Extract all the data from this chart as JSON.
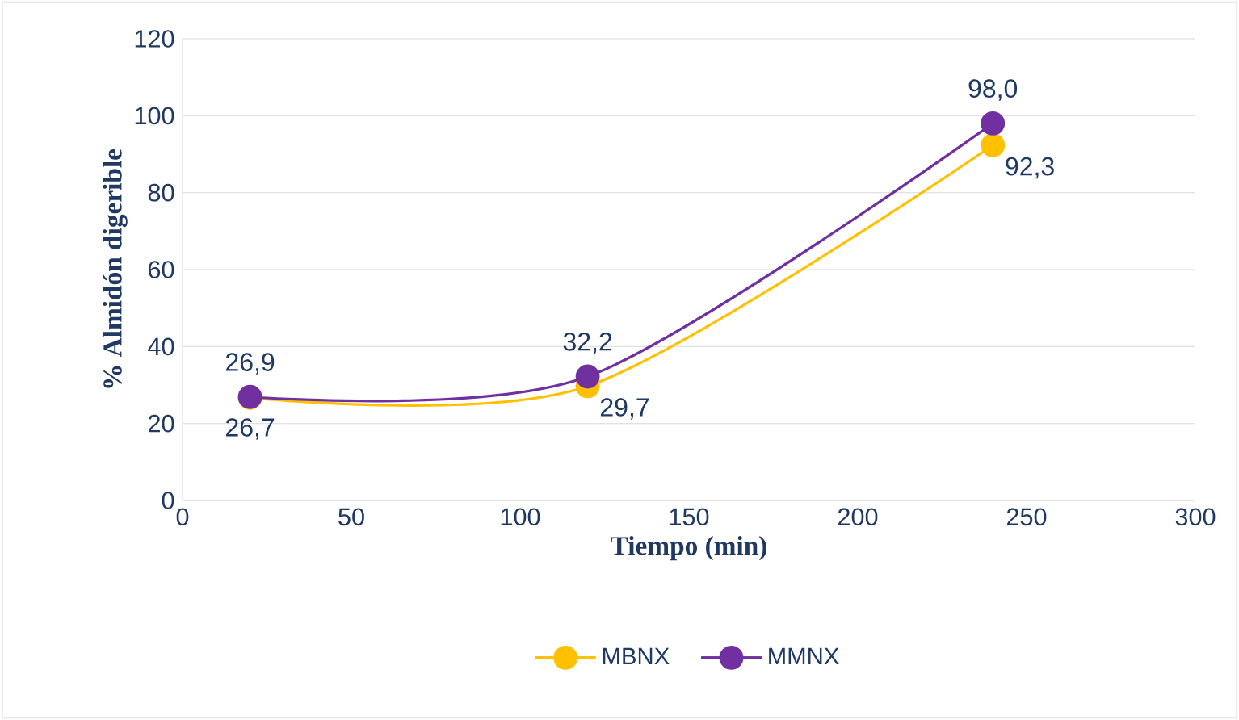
{
  "chart_data": {
    "type": "line",
    "xlabel": "Tiempo (min)",
    "ylabel": "% Almidón digerible",
    "xlim": [
      0,
      300
    ],
    "xticks": [
      0,
      50,
      100,
      150,
      200,
      250,
      300
    ],
    "ylim": [
      0,
      120
    ],
    "yticks": [
      0,
      20,
      40,
      60,
      80,
      100,
      120
    ],
    "grid": "y",
    "legend": "bottom",
    "marker": "circle",
    "line_style": "solid",
    "x": [
      20,
      120,
      240
    ],
    "series": [
      {
        "name": "MBNX",
        "color": "#ffc000",
        "values": [
          26.7,
          29.7,
          92.3
        ],
        "value_labels": [
          "26,7",
          "29,7",
          "92,3"
        ]
      },
      {
        "name": "MMNX",
        "color": "#7030a0",
        "values": [
          26.9,
          32.2,
          98.0
        ],
        "value_labels": [
          "26,9",
          "32,2",
          "98,0"
        ]
      }
    ]
  }
}
